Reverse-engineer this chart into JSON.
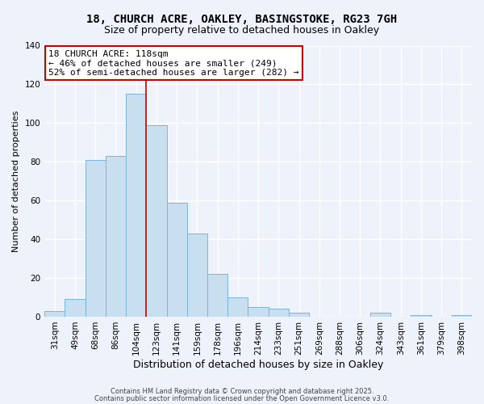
{
  "title": "18, CHURCH ACRE, OAKLEY, BASINGSTOKE, RG23 7GH",
  "subtitle": "Size of property relative to detached houses in Oakley",
  "xlabel": "Distribution of detached houses by size in Oakley",
  "ylabel": "Number of detached properties",
  "bar_labels": [
    "31sqm",
    "49sqm",
    "68sqm",
    "86sqm",
    "104sqm",
    "123sqm",
    "141sqm",
    "159sqm",
    "178sqm",
    "196sqm",
    "214sqm",
    "233sqm",
    "251sqm",
    "269sqm",
    "288sqm",
    "306sqm",
    "324sqm",
    "343sqm",
    "361sqm",
    "379sqm",
    "398sqm"
  ],
  "bar_values": [
    3,
    9,
    81,
    83,
    115,
    99,
    59,
    43,
    22,
    10,
    5,
    4,
    2,
    0,
    0,
    0,
    2,
    0,
    1,
    0,
    1
  ],
  "bar_color": "#c8dff0",
  "bar_edge_color": "#7db4d8",
  "vline_x_index": 4,
  "vline_color": "#cc0000",
  "annotation_title": "18 CHURCH ACRE: 118sqm",
  "annotation_line1": "← 46% of detached houses are smaller (249)",
  "annotation_line2": "52% of semi-detached houses are larger (282) →",
  "annotation_box_color": "#ffffff",
  "annotation_box_edge": "#cc0000",
  "ylim": [
    0,
    140
  ],
  "yticks": [
    0,
    20,
    40,
    60,
    80,
    100,
    120,
    140
  ],
  "footer1": "Contains HM Land Registry data © Crown copyright and database right 2025.",
  "footer2": "Contains public sector information licensed under the Open Government Licence v3.0.",
  "bg_color": "#eef2fb",
  "grid_color": "#ffffff",
  "title_fontsize": 10,
  "subtitle_fontsize": 9,
  "ylabel_fontsize": 8,
  "xlabel_fontsize": 9,
  "annotation_fontsize": 8,
  "tick_fontsize": 7.5
}
